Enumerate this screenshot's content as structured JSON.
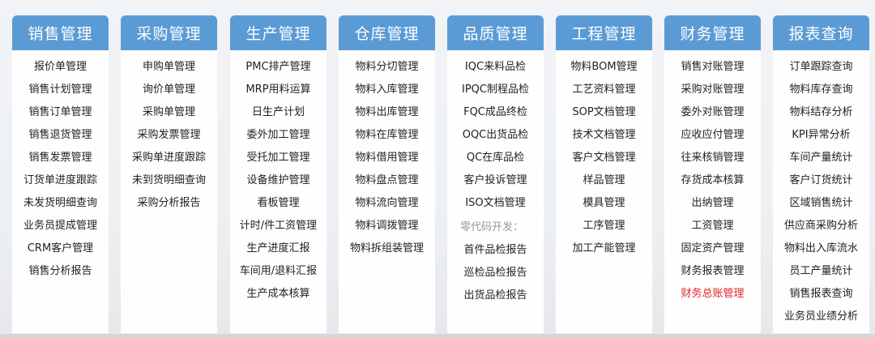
{
  "colors": {
    "header": "#5b9bd5",
    "highlight": "#e0262a",
    "note": "#999999"
  },
  "columns": [
    {
      "title": "销售管理",
      "items": [
        {
          "label": "报价单管理"
        },
        {
          "label": "销售计划管理"
        },
        {
          "label": "销售订单管理"
        },
        {
          "label": "销售退货管理"
        },
        {
          "label": "销售发票管理"
        },
        {
          "label": "订货单进度跟踪"
        },
        {
          "label": "未发货明细查询"
        },
        {
          "label": "业务员提成管理"
        },
        {
          "label": "CRM客户管理"
        },
        {
          "label": "销售分析报告"
        }
      ]
    },
    {
      "title": "采购管理",
      "items": [
        {
          "label": "申购单管理"
        },
        {
          "label": "询价单管理"
        },
        {
          "label": "采购单管理"
        },
        {
          "label": "采购发票管理"
        },
        {
          "label": "采购单进度跟踪"
        },
        {
          "label": "未到货明细查询"
        },
        {
          "label": "采购分析报告"
        }
      ]
    },
    {
      "title": "生产管理",
      "items": [
        {
          "label": "PMC排产管理"
        },
        {
          "label": "MRP用料运算"
        },
        {
          "label": "日生产计划"
        },
        {
          "label": "委外加工管理"
        },
        {
          "label": "受托加工管理"
        },
        {
          "label": "设备维护管理"
        },
        {
          "label": "看板管理"
        },
        {
          "label": "计时/件工资管理"
        },
        {
          "label": "生产进度汇报"
        },
        {
          "label": "车间用/退料汇报"
        },
        {
          "label": "生产成本核算"
        }
      ]
    },
    {
      "title": "仓库管理",
      "items": [
        {
          "label": "物料分切管理"
        },
        {
          "label": "物料入库管理"
        },
        {
          "label": "物料出库管理"
        },
        {
          "label": "物料在库管理"
        },
        {
          "label": "物料借用管理"
        },
        {
          "label": "物料盘点管理"
        },
        {
          "label": "物料流向管理"
        },
        {
          "label": "物料调拨管理"
        },
        {
          "label": "物料拆组装管理"
        }
      ]
    },
    {
      "title": "品质管理",
      "items": [
        {
          "label": "IQC来料品检"
        },
        {
          "label": "IPQC制程品检"
        },
        {
          "label": "FQC成品终检"
        },
        {
          "label": "OQC出货品检"
        },
        {
          "label": "QC在库品检"
        },
        {
          "label": "客户投诉管理"
        },
        {
          "label": "ISO文档管理"
        },
        {
          "label": "零代码开发：",
          "type": "note"
        },
        {
          "label": "首件品检报告"
        },
        {
          "label": "巡检品检报告"
        },
        {
          "label": "出货品检报告"
        }
      ]
    },
    {
      "title": "工程管理",
      "items": [
        {
          "label": "物料BOM管理"
        },
        {
          "label": "工艺资料管理"
        },
        {
          "label": "SOP文档管理"
        },
        {
          "label": "技术文档管理"
        },
        {
          "label": "客户文档管理"
        },
        {
          "label": "样品管理"
        },
        {
          "label": "模具管理"
        },
        {
          "label": "工序管理"
        },
        {
          "label": "加工产能管理"
        }
      ]
    },
    {
      "title": "财务管理",
      "items": [
        {
          "label": "销售对账管理"
        },
        {
          "label": "采购对账管理"
        },
        {
          "label": "委外对账管理"
        },
        {
          "label": "应收应付管理"
        },
        {
          "label": "往来核销管理"
        },
        {
          "label": "存货成本核算"
        },
        {
          "label": "出纳管理"
        },
        {
          "label": "工资管理"
        },
        {
          "label": "固定资产管理"
        },
        {
          "label": "财务报表管理"
        },
        {
          "label": "财务总账管理",
          "type": "red"
        }
      ]
    },
    {
      "title": "报表查询",
      "items": [
        {
          "label": "订单跟踪查询"
        },
        {
          "label": "物料库存查询"
        },
        {
          "label": "物料结存分析"
        },
        {
          "label": "KPI异常分析"
        },
        {
          "label": "车间产量统计"
        },
        {
          "label": "客户订货统计"
        },
        {
          "label": "区域销售统计"
        },
        {
          "label": "供应商采购分析"
        },
        {
          "label": "物料出入库流水"
        },
        {
          "label": "员工产量统计"
        },
        {
          "label": "销售报表查询"
        },
        {
          "label": "业务员业绩分析"
        }
      ]
    }
  ]
}
